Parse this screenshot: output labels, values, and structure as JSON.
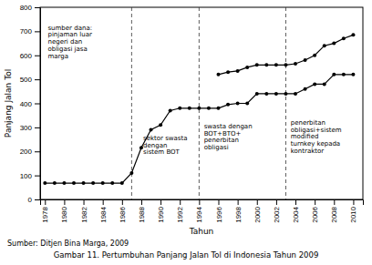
{
  "chart_data": {
    "type": "line",
    "title": "Gambar 11. Pertumbuhan Panjang Jalan Tol di Indonesia Tahun 2009",
    "source": "Sumber: Ditjen Bina Marga, 2009",
    "xlabel": "Tahun",
    "ylabel": "Panjang Jalan Tol",
    "x": [
      1978,
      1979,
      1980,
      1981,
      1982,
      1983,
      1984,
      1985,
      1986,
      1987,
      1988,
      1989,
      1990,
      1991,
      1992,
      1993,
      1994,
      1995,
      1996,
      1997,
      1998,
      1999,
      2000,
      2001,
      2002,
      2003,
      2004,
      2005,
      2006,
      2007,
      2008,
      2009,
      2010
    ],
    "series": [
      {
        "color": "#000000",
        "marker": "circle",
        "values": [
          68,
          68,
          68,
          68,
          68,
          68,
          68,
          68,
          68,
          110,
          215,
          290,
          310,
          370,
          380,
          380,
          380,
          380,
          380,
          395,
          400,
          400,
          440,
          440,
          440,
          440,
          440,
          460,
          480,
          480,
          520,
          520,
          520
        ]
      },
      {
        "color": "#000000",
        "marker": "circle",
        "values": [
          null,
          null,
          null,
          null,
          null,
          null,
          null,
          null,
          null,
          null,
          null,
          null,
          null,
          null,
          null,
          null,
          null,
          null,
          520,
          530,
          535,
          550,
          560,
          560,
          560,
          560,
          565,
          580,
          600,
          640,
          650,
          670,
          685
        ]
      }
    ],
    "vlines": [
      1987,
      1994,
      2003
    ],
    "annotations": [
      {
        "text": "sumber dana:\npinjaman luar\nnegeri dan\nobligasi jasa\nmarga",
        "x": 1978.3,
        "y": 730
      },
      {
        "text": "sektor swasta\ndengan\nsistem BOT",
        "x": 1988.2,
        "y": 270
      },
      {
        "text": "swasta dengan\nBOT+BTO+\npenerbitan\nobligasi",
        "x": 1994.5,
        "y": 320
      },
      {
        "text": "penerbitan\nobligasi+sistem\nmodified\nturnkey kepada\nkontraktor",
        "x": 2003.5,
        "y": 335
      }
    ],
    "xlim": [
      1977.5,
      2011
    ],
    "ylim": [
      0,
      800
    ],
    "xticks": [
      1978,
      1980,
      1982,
      1984,
      1986,
      1988,
      1990,
      1992,
      1994,
      1996,
      1998,
      2000,
      2002,
      2004,
      2006,
      2008,
      2010
    ],
    "yticks": [
      0,
      100,
      200,
      300,
      400,
      500,
      600,
      700,
      800
    ],
    "grid": false
  }
}
